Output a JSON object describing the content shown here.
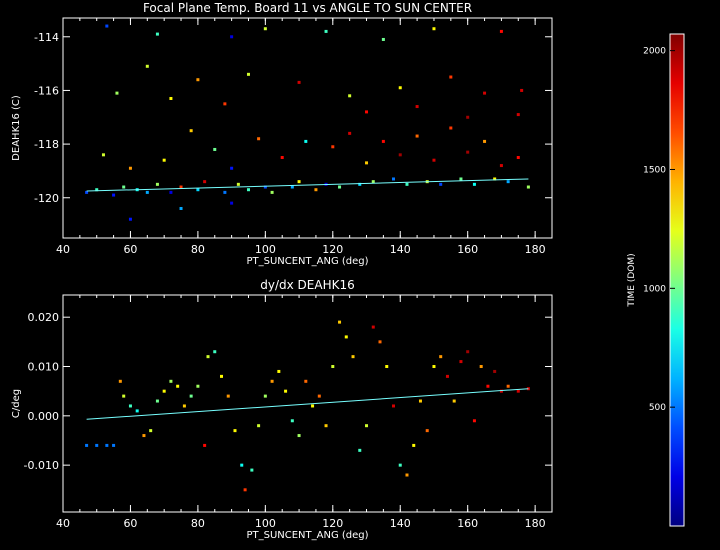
{
  "chart_data": [
    {
      "type": "scatter",
      "title": "Focal Plane Temp. Board 11 vs ANGLE TO SUN CENTER",
      "xlabel": "PT_SUNCENT_ANG (deg)",
      "ylabel": "DEAHK16 (C)",
      "xlim": [
        40,
        185
      ],
      "ylim": [
        -121.5,
        -113.3
      ],
      "xticks": [
        40,
        60,
        80,
        100,
        120,
        140,
        160,
        180
      ],
      "yticks": [
        -120,
        -118,
        -116,
        -114
      ],
      "grid": false,
      "fit_line": {
        "x": [
          47,
          178
        ],
        "y": [
          -119.75,
          -119.3
        ]
      },
      "points_note": "dense band of points near -119.7 C across 47-178 deg with scattered outliers up to -113.5 C; colored by time",
      "points": [
        [
          47,
          -119.8,
          400
        ],
        [
          50,
          -119.7,
          900
        ],
        [
          52,
          -118.4,
          1200
        ],
        [
          55,
          -119.9,
          300
        ],
        [
          58,
          -119.6,
          1000
        ],
        [
          60,
          -118.9,
          1500
        ],
        [
          62,
          -119.7,
          800
        ],
        [
          65,
          -119.8,
          600
        ],
        [
          68,
          -119.5,
          1100
        ],
        [
          70,
          -118.6,
          1300
        ],
        [
          72,
          -119.8,
          200
        ],
        [
          75,
          -119.6,
          1700
        ],
        [
          78,
          -117.5,
          1400
        ],
        [
          80,
          -119.7,
          700
        ],
        [
          82,
          -119.4,
          1900
        ],
        [
          85,
          -118.2,
          1000
        ],
        [
          88,
          -119.8,
          500
        ],
        [
          90,
          -118.9,
          300
        ],
        [
          92,
          -119.5,
          1200
        ],
        [
          95,
          -119.7,
          900
        ],
        [
          98,
          -117.8,
          1600
        ],
        [
          100,
          -119.6,
          400
        ],
        [
          102,
          -119.8,
          1100
        ],
        [
          105,
          -118.5,
          1800
        ],
        [
          108,
          -119.6,
          600
        ],
        [
          110,
          -119.4,
          1300
        ],
        [
          112,
          -117.9,
          800
        ],
        [
          115,
          -119.7,
          1500
        ],
        [
          118,
          -119.5,
          200
        ],
        [
          120,
          -118.1,
          1700
        ],
        [
          122,
          -119.6,
          1000
        ],
        [
          125,
          -117.6,
          1900
        ],
        [
          128,
          -119.5,
          700
        ],
        [
          130,
          -118.7,
          1400
        ],
        [
          132,
          -119.4,
          1100
        ],
        [
          135,
          -117.9,
          1800
        ],
        [
          138,
          -119.3,
          500
        ],
        [
          140,
          -118.4,
          2000
        ],
        [
          142,
          -119.5,
          900
        ],
        [
          145,
          -117.7,
          1600
        ],
        [
          148,
          -119.4,
          1200
        ],
        [
          150,
          -118.6,
          1900
        ],
        [
          152,
          -119.5,
          400
        ],
        [
          155,
          -117.4,
          1700
        ],
        [
          158,
          -119.3,
          1000
        ],
        [
          160,
          -118.3,
          2000
        ],
        [
          162,
          -119.5,
          800
        ],
        [
          165,
          -117.9,
          1500
        ],
        [
          168,
          -119.3,
          1300
        ],
        [
          170,
          -118.8,
          1900
        ],
        [
          172,
          -119.4,
          600
        ],
        [
          175,
          -118.5,
          1800
        ],
        [
          178,
          -119.6,
          1100
        ],
        [
          53,
          -113.6,
          400
        ],
        [
          68,
          -113.9,
          900
        ],
        [
          90,
          -114.0,
          200
        ],
        [
          100,
          -113.7,
          1200
        ],
        [
          118,
          -113.8,
          900
        ],
        [
          135,
          -114.1,
          1000
        ],
        [
          150,
          -113.7,
          1300
        ],
        [
          170,
          -113.8,
          1800
        ],
        [
          56,
          -116.1,
          1100
        ],
        [
          65,
          -115.1,
          1200
        ],
        [
          72,
          -116.3,
          1300
        ],
        [
          80,
          -115.6,
          1500
        ],
        [
          88,
          -116.5,
          1700
        ],
        [
          95,
          -115.4,
          1200
        ],
        [
          110,
          -115.7,
          1900
        ],
        [
          125,
          -116.2,
          1200
        ],
        [
          140,
          -115.9,
          1300
        ],
        [
          155,
          -115.5,
          1700
        ],
        [
          165,
          -116.1,
          1900
        ],
        [
          176,
          -116.0,
          1900
        ],
        [
          130,
          -116.8,
          1800
        ],
        [
          145,
          -116.6,
          1900
        ],
        [
          160,
          -117.0,
          2000
        ],
        [
          175,
          -116.9,
          1900
        ],
        [
          60,
          -120.8,
          300
        ],
        [
          75,
          -120.4,
          600
        ],
        [
          90,
          -120.2,
          200
        ]
      ]
    },
    {
      "type": "scatter",
      "title": "dy/dx DEAHK16",
      "xlabel": "PT_SUNCENT_ANG (deg)",
      "ylabel": "C/deg",
      "xlim": [
        40,
        185
      ],
      "ylim": [
        -0.0195,
        0.0245
      ],
      "xticks": [
        40,
        60,
        80,
        100,
        120,
        140,
        160,
        180
      ],
      "yticks": [
        -0.01,
        0.0,
        0.01,
        0.02
      ],
      "grid": false,
      "fit_line": {
        "x": [
          47,
          178
        ],
        "y": [
          -0.0007,
          0.0055
        ]
      },
      "points": [
        [
          47,
          -0.006,
          500
        ],
        [
          50,
          -0.006,
          500
        ],
        [
          53,
          -0.006,
          500
        ],
        [
          55,
          -0.006,
          500
        ],
        [
          57,
          0.007,
          1500
        ],
        [
          58,
          0.004,
          1200
        ],
        [
          60,
          0.002,
          900
        ],
        [
          62,
          0.001,
          800
        ],
        [
          64,
          -0.004,
          1500
        ],
        [
          66,
          -0.003,
          1200
        ],
        [
          68,
          0.003,
          1000
        ],
        [
          70,
          0.005,
          1300
        ],
        [
          72,
          0.007,
          1100
        ],
        [
          74,
          0.006,
          1300
        ],
        [
          76,
          0.002,
          1400
        ],
        [
          78,
          0.004,
          1000
        ],
        [
          80,
          0.006,
          1100
        ],
        [
          82,
          -0.006,
          1800
        ],
        [
          83,
          0.012,
          1200
        ],
        [
          85,
          0.013,
          900
        ],
        [
          87,
          0.008,
          1300
        ],
        [
          89,
          0.004,
          1500
        ],
        [
          91,
          -0.003,
          1300
        ],
        [
          93,
          -0.01,
          800
        ],
        [
          94,
          -0.015,
          1700
        ],
        [
          96,
          -0.011,
          900
        ],
        [
          98,
          -0.002,
          1200
        ],
        [
          100,
          0.004,
          1100
        ],
        [
          102,
          0.007,
          1500
        ],
        [
          104,
          0.009,
          1300
        ],
        [
          106,
          0.005,
          1300
        ],
        [
          108,
          -0.001,
          900
        ],
        [
          110,
          -0.004,
          1100
        ],
        [
          112,
          0.007,
          1600
        ],
        [
          114,
          0.002,
          1300
        ],
        [
          116,
          0.004,
          1600
        ],
        [
          118,
          -0.002,
          1400
        ],
        [
          120,
          0.01,
          1200
        ],
        [
          122,
          0.019,
          1400
        ],
        [
          124,
          0.016,
          1300
        ],
        [
          126,
          0.012,
          1400
        ],
        [
          128,
          -0.007,
          900
        ],
        [
          130,
          -0.002,
          1200
        ],
        [
          132,
          0.018,
          1900
        ],
        [
          134,
          0.015,
          1600
        ],
        [
          136,
          0.01,
          1300
        ],
        [
          138,
          0.002,
          1900
        ],
        [
          140,
          -0.01,
          900
        ],
        [
          142,
          -0.012,
          1500
        ],
        [
          144,
          -0.006,
          1300
        ],
        [
          146,
          0.003,
          1400
        ],
        [
          148,
          -0.003,
          1600
        ],
        [
          150,
          0.01,
          1300
        ],
        [
          152,
          0.012,
          1500
        ],
        [
          154,
          0.008,
          1900
        ],
        [
          156,
          0.003,
          1400
        ],
        [
          158,
          0.011,
          1900
        ],
        [
          160,
          0.013,
          2000
        ],
        [
          162,
          -0.001,
          1800
        ],
        [
          164,
          0.01,
          1500
        ],
        [
          166,
          0.006,
          1800
        ],
        [
          168,
          0.009,
          2000
        ],
        [
          170,
          0.005,
          1900
        ],
        [
          172,
          0.006,
          1600
        ],
        [
          175,
          0.005,
          1900
        ],
        [
          178,
          0.0055,
          1900
        ]
      ]
    },
    {
      "type": "colorbar",
      "label": "TIME (DOM)",
      "range": [
        0,
        2070
      ],
      "ticks": [
        500,
        1000,
        1500,
        2000
      ]
    }
  ]
}
